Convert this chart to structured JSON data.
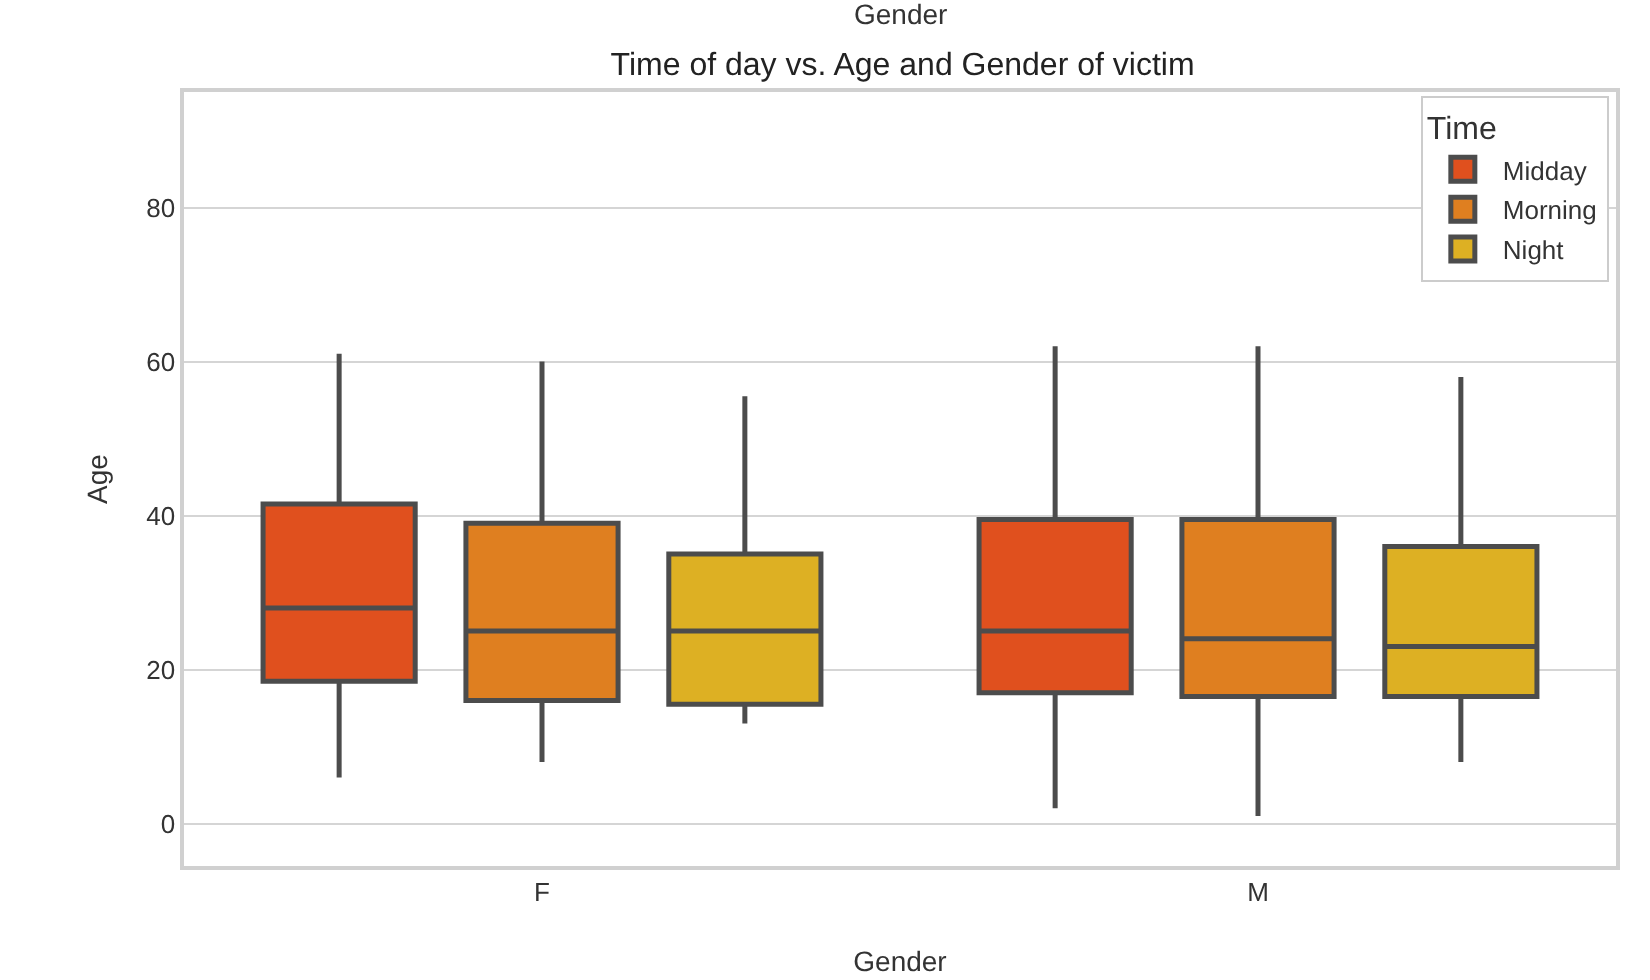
{
  "chart_data": {
    "type": "box",
    "title": "Time of day vs. Age and Gender of victim",
    "xlabel": "Gender",
    "ylabel": "Age",
    "legend_title": "Time",
    "annotations": [
      "Gender"
    ],
    "categories": [
      "F",
      "M"
    ],
    "series": [
      {
        "name": "Midday",
        "color": "#e0501e",
        "boxes": [
          {
            "low": 6,
            "q1": 18.5,
            "median": 28,
            "q3": 41.5,
            "high": 61
          },
          {
            "low": 2,
            "q1": 17,
            "median": 25,
            "q3": 39.5,
            "high": 62
          }
        ]
      },
      {
        "name": "Morning",
        "color": "#df7f20",
        "boxes": [
          {
            "low": 8,
            "q1": 16,
            "median": 25,
            "q3": 39,
            "high": 60
          },
          {
            "low": 1,
            "q1": 16.5,
            "median": 24,
            "q3": 39.5,
            "high": 62
          }
        ]
      },
      {
        "name": "Night",
        "color": "#ddb023",
        "boxes": [
          {
            "low": 13,
            "q1": 15.5,
            "median": 25,
            "q3": 35,
            "high": 55.5
          },
          {
            "low": 8,
            "q1": 16.5,
            "median": 23,
            "q3": 36,
            "high": 58
          }
        ]
      }
    ],
    "ylim": [
      -5.5,
      95
    ],
    "yticks": [
      0,
      20,
      40,
      60,
      80
    ],
    "grid": "y",
    "legend": "top right"
  }
}
